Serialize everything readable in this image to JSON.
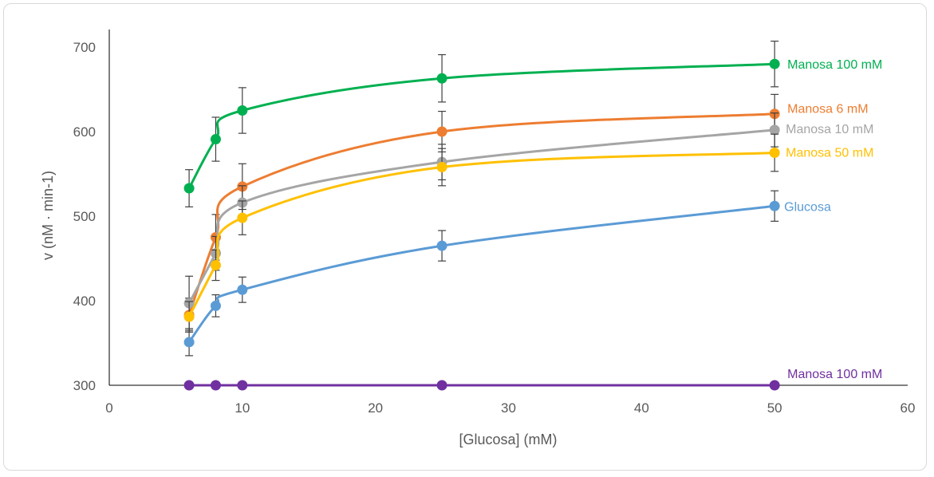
{
  "chart_data": {
    "type": "line",
    "xlabel": "[Glucosa] (mM)",
    "ylabel": "v (nM · min-1)",
    "xlim": [
      0,
      60
    ],
    "ylim": [
      300,
      700
    ],
    "x_ticks": [
      "0",
      "10",
      "20",
      "30",
      "40",
      "50",
      "60"
    ],
    "y_ticks": [
      "300",
      "400",
      "500",
      "600",
      "700"
    ],
    "grid": false,
    "legend": "inline labels at line ends",
    "series": [
      {
        "name": "Manosa 100 mM",
        "color": "#00b050",
        "x": [
          6,
          8,
          10,
          25,
          50
        ],
        "y": [
          533,
          591,
          625,
          663,
          680
        ],
        "err": [
          22,
          26,
          27,
          28,
          27
        ]
      },
      {
        "name": "Manosa 6 mM",
        "color": "#ed7d31",
        "x": [
          6,
          8,
          10,
          25,
          50
        ],
        "y": [
          383,
          475,
          535,
          600,
          621
        ],
        "err": [
          20,
          27,
          27,
          24,
          23
        ]
      },
      {
        "name": "Manosa 10 mM",
        "color": "#a5a5a5",
        "x": [
          6,
          8,
          10,
          25,
          50
        ],
        "y": [
          397,
          456,
          516,
          564,
          602
        ],
        "err": [
          32,
          20,
          20,
          21,
          20
        ]
      },
      {
        "name": "Manosa 50 mM",
        "color": "#ffc000",
        "x": [
          6,
          8,
          10,
          25,
          50
        ],
        "y": [
          381,
          442,
          498,
          558,
          575
        ],
        "err": [
          18,
          18,
          20,
          22,
          22
        ]
      },
      {
        "name": "Glucosa",
        "color": "#5b9bd5",
        "x": [
          6,
          8,
          10,
          25,
          50
        ],
        "y": [
          351,
          394,
          413,
          465,
          512
        ],
        "err": [
          16,
          13,
          15,
          18,
          18
        ]
      },
      {
        "name": "Manosa 100 mM",
        "color": "#7030a0",
        "x": [
          6,
          8,
          10,
          25,
          50
        ],
        "y": [
          300,
          300,
          300,
          300,
          300
        ],
        "err": [
          0,
          0,
          0,
          0,
          0
        ]
      }
    ]
  }
}
